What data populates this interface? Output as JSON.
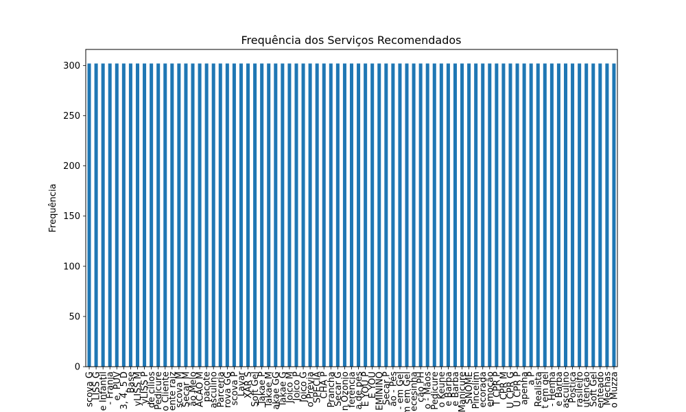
{
  "chart_data": {
    "type": "bar",
    "title": "Frequência dos Serviços Recomendados",
    "xlabel": "",
    "ylabel": "Frequência",
    "ylim": [
      0,
      316
    ],
    "yticks": [
      0,
      50,
      100,
      150,
      200,
      250,
      300
    ],
    "grid": false,
    "bar_color": "#1f77b4",
    "categories": [
      "scova G",
      "LISS G",
      "e Infantil",
      "- Franja",
      "e, PUV",
      "3, 4, 5 D",
      "Base",
      "yLISS M",
      "yLISS P",
      "de cílios",
      "Pedicure",
      "o Cliente",
      "ente raiz",
      "scova M",
      "Secar M",
      "ão Melo",
      "ACÃO M",
      "pacote",
      "asculino",
      "Parceria",
      "rova GG",
      "scova P",
      "Lavar",
      "XAR S",
      "Soft Gel",
      "Takae P",
      "Takae M",
      "akae GG",
      "Takae G",
      "Joico M",
      "Joico P",
      "Joico G",
      "o Prévia",
      "SPECIA",
      "CHA P",
      "Prancha",
      "Secar G",
      "n Ozonio",
      "ferência",
      "a de pés",
      "É YOU P",
      "E YOU",
      "EMININO",
      "Secar P",
      "ão - Pés",
      "- em Gel",
      "m em Gel",
      "ecesinha",
      "ção PH",
      "o - Mãos",
      "Pedicure",
      "o Keune",
      "e Barba",
      "e Barba",
      "Manicure",
      "SNOME",
      "Pincelim",
      "ecorada",
      "emoção",
      "T CPR P",
      "CPR M",
      "U CPR G",
      "U CPR P",
      "apenha",
      "a P",
      "Realista",
      "t em gel",
      "- Henna",
      "e Barba",
      "asculino",
      "Postiça",
      "rasileiro",
      "utenção",
      "Soft Gel",
      "enteado",
      "Mechas",
      "o Muzza"
    ],
    "values": [
      302,
      302,
      302,
      302,
      302,
      302,
      302,
      302,
      302,
      302,
      302,
      302,
      302,
      302,
      302,
      302,
      302,
      302,
      302,
      302,
      302,
      302,
      302,
      302,
      302,
      302,
      302,
      302,
      302,
      302,
      302,
      302,
      302,
      302,
      302,
      302,
      302,
      302,
      302,
      302,
      302,
      302,
      302,
      302,
      302,
      302,
      302,
      302,
      302,
      302,
      302,
      302,
      302,
      302,
      302,
      302,
      302,
      302,
      302,
      302,
      302,
      302,
      302,
      302,
      302,
      302,
      302,
      302,
      302,
      302,
      302,
      302,
      302,
      302,
      302,
      302,
      302
    ]
  }
}
